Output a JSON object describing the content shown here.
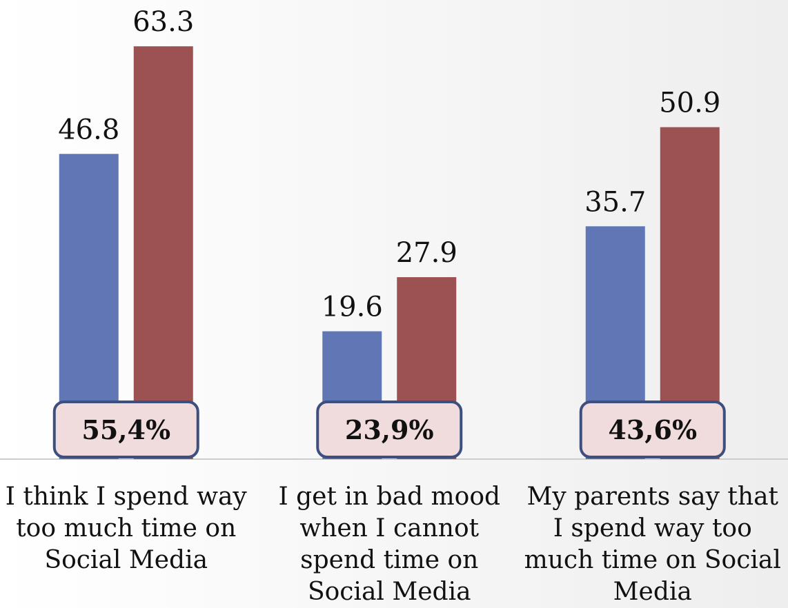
{
  "chart_data": {
    "type": "bar",
    "categories": [
      "I think I spend way too much time on Social Media",
      "I get in bad mood when I cannot spend time on Social Media",
      "My parents say that I spend way too much time on Social Media"
    ],
    "series": [
      {
        "color": "#6076b5",
        "values": [
          46.8,
          19.6,
          35.7
        ]
      },
      {
        "color": "#9c5152",
        "values": [
          63.3,
          27.9,
          50.9
        ]
      }
    ],
    "annotations": [
      "55,4%",
      "23,9%",
      "43,6%"
    ]
  }
}
